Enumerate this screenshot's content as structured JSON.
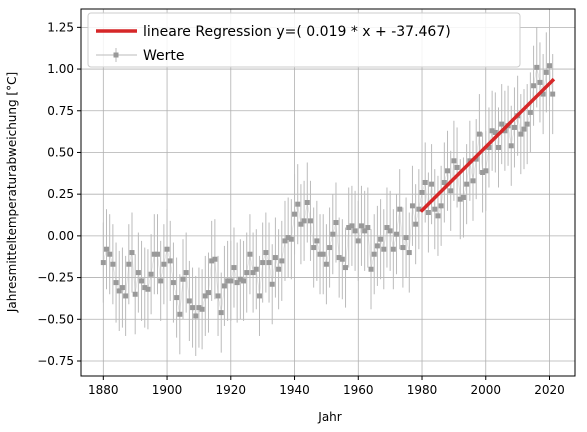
{
  "chart_data": {
    "type": "scatter",
    "title": "",
    "xlabel": "Jahr",
    "ylabel": "Jahresmitteltemperaturabweichung [°C]",
    "xlim": [
      1873,
      2028
    ],
    "ylim": [
      -0.84,
      1.36
    ],
    "xticks": [
      "1880",
      "1900",
      "1920",
      "1940",
      "1960",
      "1980",
      "2000",
      "2020"
    ],
    "yticks": [
      "−0.75",
      "−0.50",
      "−0.25",
      "0.00",
      "0.25",
      "0.50",
      "0.75",
      "1.00",
      "1.25"
    ],
    "grid": true,
    "legend_position": "top-left",
    "colors": {
      "points": "#999999",
      "error": "#bbbbbb",
      "regression": "#d62728",
      "grid": "#b0b0b0"
    },
    "series": [
      {
        "name": "Werte",
        "kind": "errorbar",
        "x": [
          1880,
          1881,
          1882,
          1883,
          1884,
          1885,
          1886,
          1887,
          1888,
          1889,
          1890,
          1891,
          1892,
          1893,
          1894,
          1895,
          1896,
          1897,
          1898,
          1899,
          1900,
          1901,
          1902,
          1903,
          1904,
          1905,
          1906,
          1907,
          1908,
          1909,
          1910,
          1911,
          1912,
          1913,
          1914,
          1915,
          1916,
          1917,
          1918,
          1919,
          1920,
          1921,
          1922,
          1923,
          1924,
          1925,
          1926,
          1927,
          1928,
          1929,
          1930,
          1931,
          1932,
          1933,
          1934,
          1935,
          1936,
          1937,
          1938,
          1939,
          1940,
          1941,
          1942,
          1943,
          1944,
          1945,
          1946,
          1947,
          1948,
          1949,
          1950,
          1951,
          1952,
          1953,
          1954,
          1955,
          1956,
          1957,
          1958,
          1959,
          1960,
          1961,
          1962,
          1963,
          1964,
          1965,
          1966,
          1967,
          1968,
          1969,
          1970,
          1971,
          1972,
          1973,
          1974,
          1975,
          1976,
          1977,
          1978,
          1979,
          1980,
          1981,
          1982,
          1983,
          1984,
          1985,
          1986,
          1987,
          1988,
          1989,
          1990,
          1991,
          1992,
          1993,
          1994,
          1995,
          1996,
          1997,
          1998,
          1999,
          2000,
          2001,
          2002,
          2003,
          2004,
          2005,
          2006,
          2007,
          2008,
          2009,
          2010,
          2011,
          2012,
          2013,
          2014,
          2015,
          2016,
          2017,
          2018,
          2019,
          2020,
          2021
        ],
        "y": [
          -0.16,
          -0.08,
          -0.11,
          -0.17,
          -0.28,
          -0.33,
          -0.31,
          -0.36,
          -0.17,
          -0.1,
          -0.35,
          -0.22,
          -0.27,
          -0.31,
          -0.32,
          -0.23,
          -0.11,
          -0.11,
          -0.27,
          -0.17,
          -0.08,
          -0.15,
          -0.28,
          -0.37,
          -0.47,
          -0.26,
          -0.22,
          -0.39,
          -0.43,
          -0.48,
          -0.43,
          -0.44,
          -0.36,
          -0.34,
          -0.15,
          -0.14,
          -0.36,
          -0.46,
          -0.3,
          -0.27,
          -0.27,
          -0.19,
          -0.28,
          -0.26,
          -0.27,
          -0.22,
          -0.11,
          -0.22,
          -0.2,
          -0.36,
          -0.16,
          -0.1,
          -0.16,
          -0.29,
          -0.13,
          -0.2,
          -0.15,
          -0.03,
          -0.01,
          -0.02,
          0.13,
          0.19,
          0.07,
          0.09,
          0.2,
          0.09,
          -0.07,
          -0.03,
          -0.11,
          -0.11,
          -0.17,
          -0.07,
          0.01,
          0.08,
          -0.13,
          -0.14,
          -0.19,
          0.05,
          0.06,
          0.03,
          -0.03,
          0.06,
          0.03,
          0.05,
          -0.2,
          -0.11,
          -0.06,
          -0.02,
          -0.08,
          0.05,
          0.03,
          -0.08,
          0.01,
          0.16,
          -0.07,
          -0.01,
          -0.1,
          0.18,
          0.07,
          0.16,
          0.26,
          0.32,
          0.14,
          0.31,
          0.16,
          0.12,
          0.18,
          0.32,
          0.39,
          0.27,
          0.45,
          0.41,
          0.22,
          0.23,
          0.31,
          0.45,
          0.33,
          0.46,
          0.61,
          0.38,
          0.39,
          0.53,
          0.63,
          0.62,
          0.53,
          0.67,
          0.63,
          0.66,
          0.54,
          0.65,
          0.72,
          0.61,
          0.64,
          0.67,
          0.74,
          0.9,
          1.01,
          0.92,
          0.85,
          0.98,
          1.02,
          0.85
        ],
        "error": 0.24
      },
      {
        "name": "lineare Regression y=( 0.019 * x + -37.467)",
        "kind": "line",
        "slope": 0.019,
        "intercept": -37.467,
        "x_range": [
          1980,
          2021
        ]
      }
    ]
  }
}
